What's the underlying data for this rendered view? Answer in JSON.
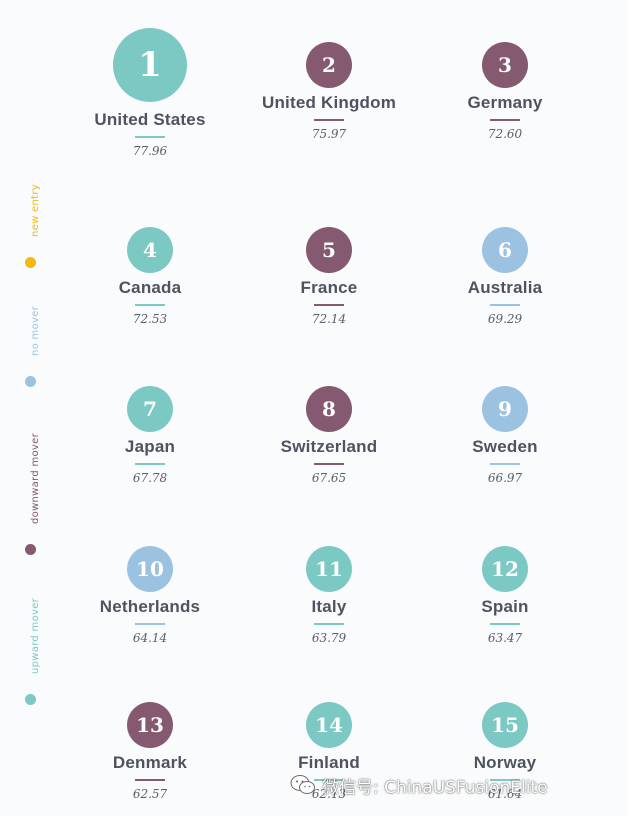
{
  "colors": {
    "upward": "#7cc8c3",
    "downward": "#85596f",
    "no_mover": "#9cc2e1",
    "new_entry": "#f3b90f"
  },
  "legend": [
    {
      "label": "new entry",
      "status": "new_entry"
    },
    {
      "label": "no mover",
      "status": "no_mover"
    },
    {
      "label": "downward mover",
      "status": "downward"
    },
    {
      "label": "upward mover",
      "status": "upward"
    }
  ],
  "countries": [
    {
      "rank": "1",
      "name": "United States",
      "score": "77.96",
      "status": "upward"
    },
    {
      "rank": "2",
      "name": "United Kingdom",
      "score": "75.97",
      "status": "downward"
    },
    {
      "rank": "3",
      "name": "Germany",
      "score": "72.60",
      "status": "downward"
    },
    {
      "rank": "4",
      "name": "Canada",
      "score": "72.53",
      "status": "upward"
    },
    {
      "rank": "5",
      "name": "France",
      "score": "72.14",
      "status": "downward"
    },
    {
      "rank": "6",
      "name": "Australia",
      "score": "69.29",
      "status": "no_mover"
    },
    {
      "rank": "7",
      "name": "Japan",
      "score": "67.78",
      "status": "upward"
    },
    {
      "rank": "8",
      "name": "Switzerland",
      "score": "67.65",
      "status": "downward"
    },
    {
      "rank": "9",
      "name": "Sweden",
      "score": "66.97",
      "status": "no_mover"
    },
    {
      "rank": "10",
      "name": "Netherlands",
      "score": "64.14",
      "status": "no_mover"
    },
    {
      "rank": "11",
      "name": "Italy",
      "score": "63.79",
      "status": "upward"
    },
    {
      "rank": "12",
      "name": "Spain",
      "score": "63.47",
      "status": "upward"
    },
    {
      "rank": "13",
      "name": "Denmark",
      "score": "62.57",
      "status": "downward"
    },
    {
      "rank": "14",
      "name": "Finland",
      "score": "62.13",
      "status": "upward"
    },
    {
      "rank": "15",
      "name": "Norway",
      "score": "61.64",
      "status": "upward"
    }
  ],
  "watermark": {
    "icon": "wechat-icon",
    "text": "微信号: ChinaUSFusionElite"
  }
}
